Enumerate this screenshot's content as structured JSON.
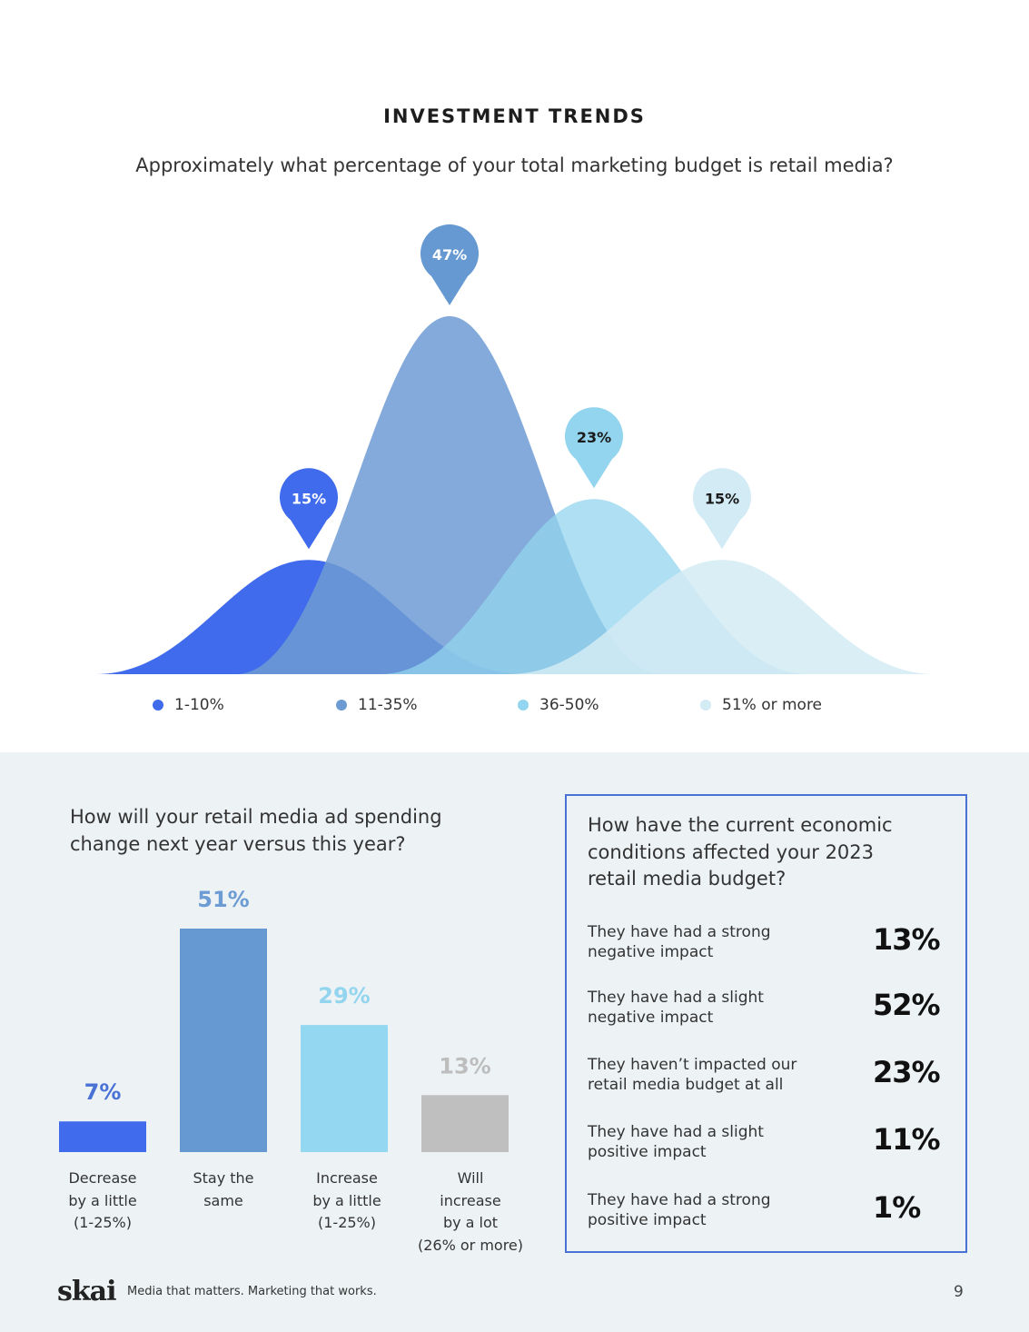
{
  "header": {
    "section_title": "INVESTMENT TRENDS",
    "question": "Approximately what percentage of your total marketing budget is retail media?"
  },
  "chart_data": [
    {
      "type": "area",
      "title": "Approximately what percentage of your total marketing budget is retail media?",
      "categories": [
        "1-10%",
        "11-35%",
        "36-50%",
        "51% or more"
      ],
      "values": [
        15,
        47,
        23,
        15
      ],
      "labels": [
        "15%",
        "47%",
        "23%",
        "15%"
      ],
      "colors": [
        "#3f6bec",
        "#6d9bd3",
        "#93d4ee",
        "#d3ebf5"
      ],
      "legend_position": "bottom",
      "grid": false
    },
    {
      "type": "bar",
      "title": "How will your retail media ad spending change next year versus this year?",
      "categories": [
        [
          "Decrease",
          "by a little",
          "(1-25%)"
        ],
        [
          "Stay the",
          "same"
        ],
        [
          "Increase",
          "by a little",
          "(1-25%)"
        ],
        [
          "Will",
          "increase",
          "by a lot",
          "(26% or more)"
        ]
      ],
      "values": [
        7,
        51,
        29,
        13
      ],
      "labels": [
        "7%",
        "51%",
        "29%",
        "13%"
      ],
      "colors": [
        "#3f6bec",
        "#6699d1",
        "#93d8f0",
        "#bfbfbf"
      ],
      "ylim": [
        0,
        51
      ],
      "grid": false
    },
    {
      "type": "table",
      "title": "How have the current economic conditions affected your 2023 retail media budget?",
      "rows": [
        {
          "label": [
            "They have had a strong",
            "negative impact"
          ],
          "value": "13%"
        },
        {
          "label": [
            "They have had a slight",
            "negative impact"
          ],
          "value": "52%"
        },
        {
          "label": [
            "They haven’t impacted our",
            "retail media budget at all"
          ],
          "value": "23%"
        },
        {
          "label": [
            "They have had a slight",
            "positive impact"
          ],
          "value": "11%"
        },
        {
          "label": [
            "They have had a strong",
            "positive impact"
          ],
          "value": "1%"
        }
      ]
    }
  ],
  "spending": {
    "question_line1": "How will your retail media ad spending",
    "question_line2": "change next year versus this year?"
  },
  "impact": {
    "question_line1": "How have the current economic",
    "question_line2": "conditions affected your 2023",
    "question_line3": "retail media budget?"
  },
  "footer": {
    "logo": "skai",
    "tagline": "Media that matters.  Marketing that works.",
    "page_number": "9"
  }
}
